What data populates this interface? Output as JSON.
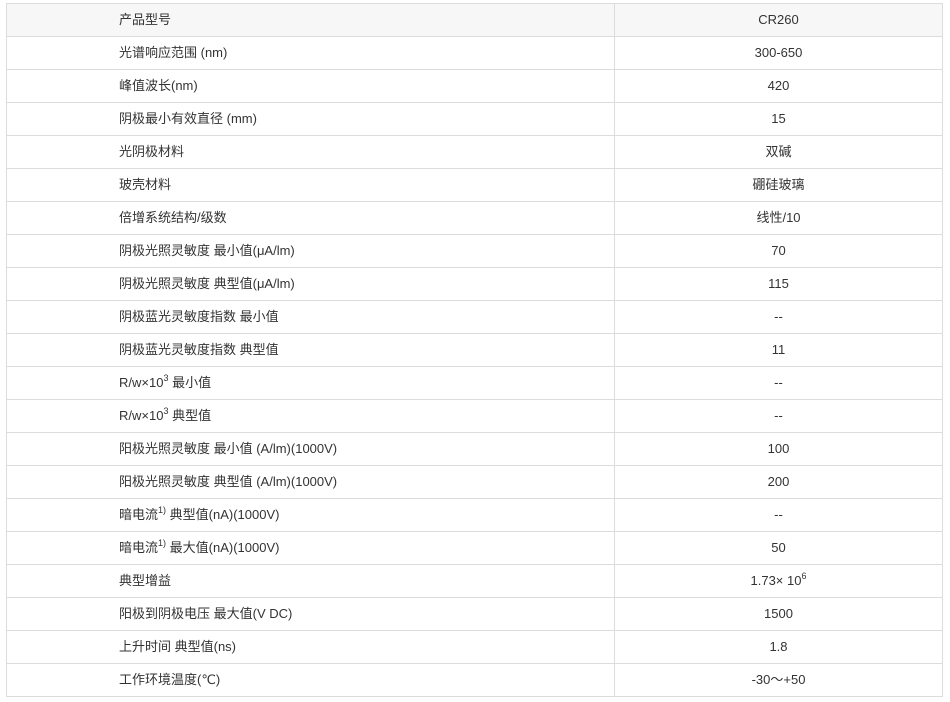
{
  "spec_table": {
    "rows": [
      {
        "label": "产品型号",
        "value": "CR260"
      },
      {
        "label": "光谱响应范围 (nm)",
        "value": "300-650"
      },
      {
        "label": "峰值波长(nm)",
        "value": "420"
      },
      {
        "label": "阴极最小有效直径 (mm)",
        "value": "15"
      },
      {
        "label": "光阴极材料",
        "value": "双碱"
      },
      {
        "label": "玻壳材料",
        "value": "硼硅玻璃"
      },
      {
        "label": "倍增系统结构/级数",
        "value": "线性/10"
      },
      {
        "label": "阴极光照灵敏度 最小值(μA/lm)",
        "value": "70"
      },
      {
        "label": "阴极光照灵敏度 典型值(μA/lm)",
        "value": "115"
      },
      {
        "label": "阴极蓝光灵敏度指数 最小值",
        "value": "--"
      },
      {
        "label": "阴极蓝光灵敏度指数 典型值",
        "value": "11"
      },
      {
        "label": "R/w×10",
        "label_sup": "3",
        "label_rest": " 最小值",
        "value": "--"
      },
      {
        "label": "R/w×10",
        "label_sup": "3",
        "label_rest": " 典型值",
        "value": "--"
      },
      {
        "label": "阳极光照灵敏度 最小值 (A/lm)(1000V)",
        "value": "100"
      },
      {
        "label": "阳极光照灵敏度 典型值 (A/lm)(1000V)",
        "value": "200"
      },
      {
        "label": "暗电流",
        "label_sup": "1)",
        "label_rest": " 典型值(nA)(1000V)",
        "value": "--"
      },
      {
        "label": "暗电流",
        "label_sup": "1)",
        "label_rest": " 最大值(nA)(1000V)",
        "value": "50"
      },
      {
        "label": "典型增益",
        "value": "1.73× 10",
        "value_sup": "6"
      },
      {
        "label": "阳极到阴极电压 最大值(V DC)",
        "value": "1500"
      },
      {
        "label": "上升时间 典型值(ns)",
        "value": "1.8"
      },
      {
        "label": "工作环境温度(℃)",
        "value": "-30～+50"
      }
    ]
  }
}
